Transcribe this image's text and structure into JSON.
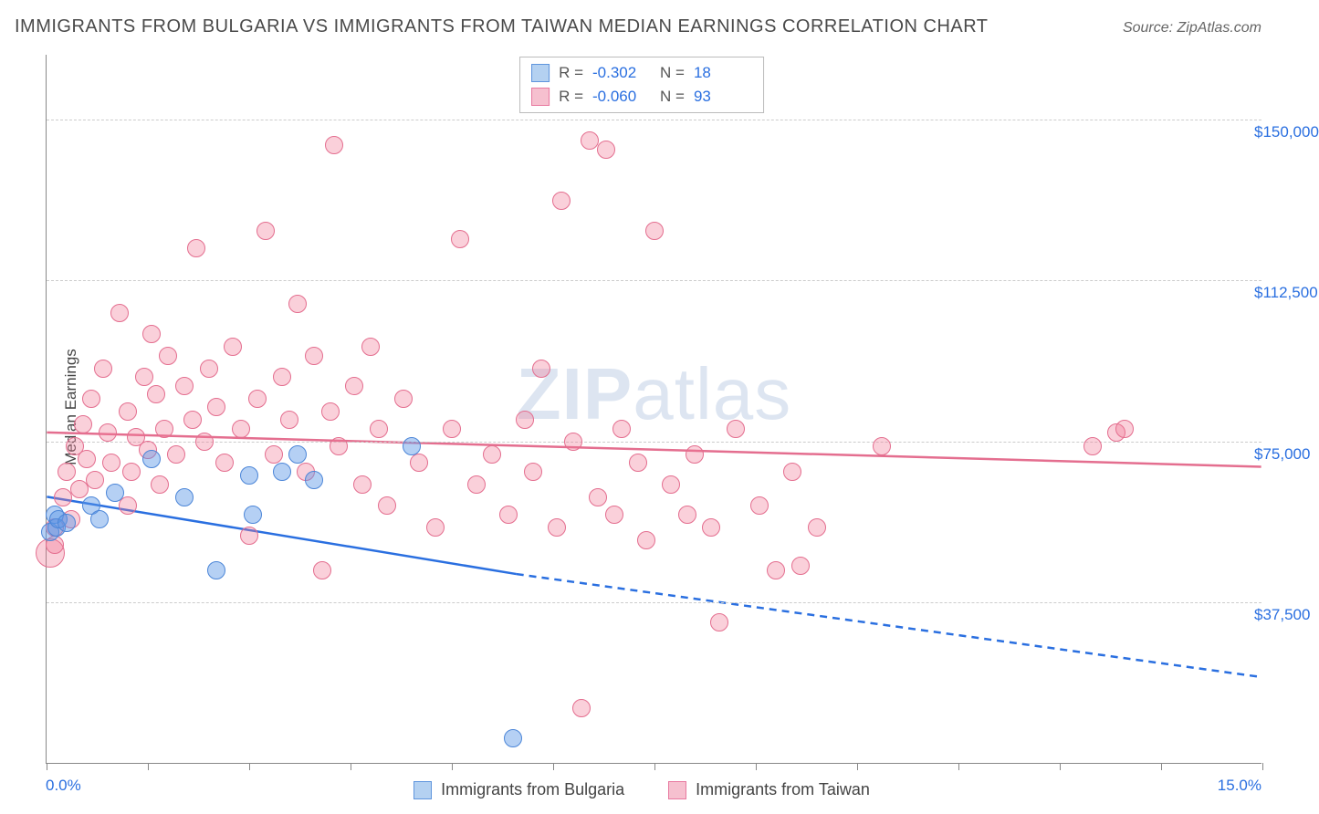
{
  "title": "IMMIGRANTS FROM BULGARIA VS IMMIGRANTS FROM TAIWAN MEDIAN EARNINGS CORRELATION CHART",
  "source_label": "Source: ZipAtlas.com",
  "watermark": {
    "bold": "ZIP",
    "rest": "atlas"
  },
  "ylabel": "Median Earnings",
  "chart": {
    "type": "scatter",
    "background_color": "#ffffff",
    "grid_color": "#cccccc",
    "axis_color": "#888888",
    "label_color": "#2a6fe0",
    "xlim": [
      0,
      15
    ],
    "ylim": [
      0,
      165000
    ],
    "xtick_label_left": "0.0%",
    "xtick_label_right": "15.0%",
    "xtick_positions": [
      0,
      1.25,
      2.5,
      3.75,
      5,
      6.25,
      7.5,
      8.75,
      10,
      11.25,
      12.5,
      13.75,
      15
    ],
    "ytick_labels": [
      "$37,500",
      "$75,000",
      "$112,500",
      "$150,000"
    ],
    "ytick_values": [
      37500,
      75000,
      112500,
      150000
    ],
    "point_radius": 10,
    "series": [
      {
        "name": "Immigrants from Bulgaria",
        "color_fill": "rgba(90,150,230,0.45)",
        "color_stroke": "#4c86d8",
        "swatch_fill": "#b4d1f1",
        "swatch_stroke": "#5f95dd",
        "trend_color": "#2a6fe0",
        "stats": {
          "R": "-0.302",
          "N": "18"
        },
        "trend": {
          "x0": 0,
          "y0": 62000,
          "x1": 5.8,
          "y1": 44000,
          "dash_from_x": 5.8,
          "dash_to_x": 15,
          "dash_to_y": 20000
        },
        "points": [
          {
            "x": 0.05,
            "y": 54000
          },
          {
            "x": 0.1,
            "y": 58000
          },
          {
            "x": 0.12,
            "y": 55000
          },
          {
            "x": 0.15,
            "y": 57000
          },
          {
            "x": 0.25,
            "y": 56000
          },
          {
            "x": 0.55,
            "y": 60000
          },
          {
            "x": 0.65,
            "y": 57000
          },
          {
            "x": 0.85,
            "y": 63000
          },
          {
            "x": 1.3,
            "y": 71000
          },
          {
            "x": 1.7,
            "y": 62000
          },
          {
            "x": 2.1,
            "y": 45000
          },
          {
            "x": 2.5,
            "y": 67000
          },
          {
            "x": 2.55,
            "y": 58000
          },
          {
            "x": 2.9,
            "y": 68000
          },
          {
            "x": 3.1,
            "y": 72000
          },
          {
            "x": 3.3,
            "y": 66000
          },
          {
            "x": 4.5,
            "y": 74000
          },
          {
            "x": 5.75,
            "y": 6000
          }
        ]
      },
      {
        "name": "Immigrants from Taiwan",
        "color_fill": "rgba(240,120,150,0.35)",
        "color_stroke": "#e46e8f",
        "swatch_fill": "#f6c0cf",
        "swatch_stroke": "#e879a0",
        "trend_color": "#e46e8f",
        "stats": {
          "R": "-0.060",
          "N": "93"
        },
        "trend": {
          "x0": 0,
          "y0": 77000,
          "x1": 15,
          "y1": 69000
        },
        "points": [
          {
            "x": 0.05,
            "y": 49000,
            "r": 16
          },
          {
            "x": 0.1,
            "y": 51000
          },
          {
            "x": 0.1,
            "y": 55000
          },
          {
            "x": 0.2,
            "y": 62000
          },
          {
            "x": 0.25,
            "y": 68000
          },
          {
            "x": 0.3,
            "y": 57000
          },
          {
            "x": 0.35,
            "y": 74000
          },
          {
            "x": 0.4,
            "y": 64000
          },
          {
            "x": 0.45,
            "y": 79000
          },
          {
            "x": 0.5,
            "y": 71000
          },
          {
            "x": 0.55,
            "y": 85000
          },
          {
            "x": 0.6,
            "y": 66000
          },
          {
            "x": 0.7,
            "y": 92000
          },
          {
            "x": 0.75,
            "y": 77000
          },
          {
            "x": 0.8,
            "y": 70000
          },
          {
            "x": 0.9,
            "y": 105000
          },
          {
            "x": 1.0,
            "y": 82000
          },
          {
            "x": 1.05,
            "y": 68000
          },
          {
            "x": 1.1,
            "y": 76000
          },
          {
            "x": 1.2,
            "y": 90000
          },
          {
            "x": 1.25,
            "y": 73000
          },
          {
            "x": 1.3,
            "y": 100000
          },
          {
            "x": 1.35,
            "y": 86000
          },
          {
            "x": 1.45,
            "y": 78000
          },
          {
            "x": 1.5,
            "y": 95000
          },
          {
            "x": 1.6,
            "y": 72000
          },
          {
            "x": 1.7,
            "y": 88000
          },
          {
            "x": 1.8,
            "y": 80000
          },
          {
            "x": 1.85,
            "y": 120000
          },
          {
            "x": 1.95,
            "y": 75000
          },
          {
            "x": 2.0,
            "y": 92000
          },
          {
            "x": 2.1,
            "y": 83000
          },
          {
            "x": 2.2,
            "y": 70000
          },
          {
            "x": 2.3,
            "y": 97000
          },
          {
            "x": 2.4,
            "y": 78000
          },
          {
            "x": 2.5,
            "y": 53000
          },
          {
            "x": 2.6,
            "y": 85000
          },
          {
            "x": 2.7,
            "y": 124000
          },
          {
            "x": 2.8,
            "y": 72000
          },
          {
            "x": 2.9,
            "y": 90000
          },
          {
            "x": 3.0,
            "y": 80000
          },
          {
            "x": 3.1,
            "y": 107000
          },
          {
            "x": 3.2,
            "y": 68000
          },
          {
            "x": 3.3,
            "y": 95000
          },
          {
            "x": 3.4,
            "y": 45000
          },
          {
            "x": 3.5,
            "y": 82000
          },
          {
            "x": 3.55,
            "y": 144000
          },
          {
            "x": 3.6,
            "y": 74000
          },
          {
            "x": 3.8,
            "y": 88000
          },
          {
            "x": 3.9,
            "y": 65000
          },
          {
            "x": 4.0,
            "y": 97000
          },
          {
            "x": 4.1,
            "y": 78000
          },
          {
            "x": 4.2,
            "y": 60000
          },
          {
            "x": 4.4,
            "y": 85000
          },
          {
            "x": 4.6,
            "y": 70000
          },
          {
            "x": 4.8,
            "y": 55000
          },
          {
            "x": 5.0,
            "y": 78000
          },
          {
            "x": 5.1,
            "y": 122000
          },
          {
            "x": 5.3,
            "y": 65000
          },
          {
            "x": 5.5,
            "y": 72000
          },
          {
            "x": 5.7,
            "y": 58000
          },
          {
            "x": 5.9,
            "y": 80000
          },
          {
            "x": 6.0,
            "y": 68000
          },
          {
            "x": 6.1,
            "y": 92000
          },
          {
            "x": 6.3,
            "y": 55000
          },
          {
            "x": 6.35,
            "y": 131000
          },
          {
            "x": 6.5,
            "y": 75000
          },
          {
            "x": 6.6,
            "y": 13000
          },
          {
            "x": 6.7,
            "y": 145000
          },
          {
            "x": 6.8,
            "y": 62000
          },
          {
            "x": 6.9,
            "y": 143000
          },
          {
            "x": 7.0,
            "y": 58000
          },
          {
            "x": 7.1,
            "y": 78000
          },
          {
            "x": 7.3,
            "y": 70000
          },
          {
            "x": 7.4,
            "y": 52000
          },
          {
            "x": 7.5,
            "y": 124000
          },
          {
            "x": 7.7,
            "y": 65000
          },
          {
            "x": 7.9,
            "y": 58000
          },
          {
            "x": 8.0,
            "y": 72000
          },
          {
            "x": 8.2,
            "y": 55000
          },
          {
            "x": 8.3,
            "y": 33000
          },
          {
            "x": 8.5,
            "y": 78000
          },
          {
            "x": 8.8,
            "y": 60000
          },
          {
            "x": 9.0,
            "y": 45000
          },
          {
            "x": 9.2,
            "y": 68000
          },
          {
            "x": 9.3,
            "y": 46000
          },
          {
            "x": 9.5,
            "y": 55000
          },
          {
            "x": 10.3,
            "y": 74000
          },
          {
            "x": 12.9,
            "y": 74000
          },
          {
            "x": 13.2,
            "y": 77000
          },
          {
            "x": 13.3,
            "y": 78000
          },
          {
            "x": 1.0,
            "y": 60000
          },
          {
            "x": 1.4,
            "y": 65000
          }
        ]
      }
    ]
  },
  "legend_bottom": [
    {
      "label": "Immigrants from Bulgaria",
      "series": 0
    },
    {
      "label": "Immigrants from Taiwan",
      "series": 1
    }
  ]
}
